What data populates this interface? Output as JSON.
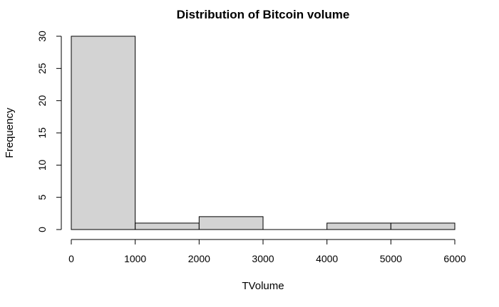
{
  "chart_data": {
    "type": "bar",
    "title": "Distribution of Bitcoin volume",
    "xlabel": "TVolume",
    "ylabel": "Frequency",
    "bin_edges": [
      0,
      1000,
      2000,
      3000,
      4000,
      5000,
      6000
    ],
    "values": [
      30,
      1,
      2,
      0,
      1,
      1
    ],
    "xlim": [
      0,
      6000
    ],
    "ylim": [
      0,
      30
    ],
    "xticks": [
      0,
      1000,
      2000,
      3000,
      4000,
      5000,
      6000
    ],
    "yticks": [
      0,
      5,
      10,
      15,
      20,
      25,
      30
    ],
    "bar_color": "#d3d3d3",
    "grid": false
  }
}
